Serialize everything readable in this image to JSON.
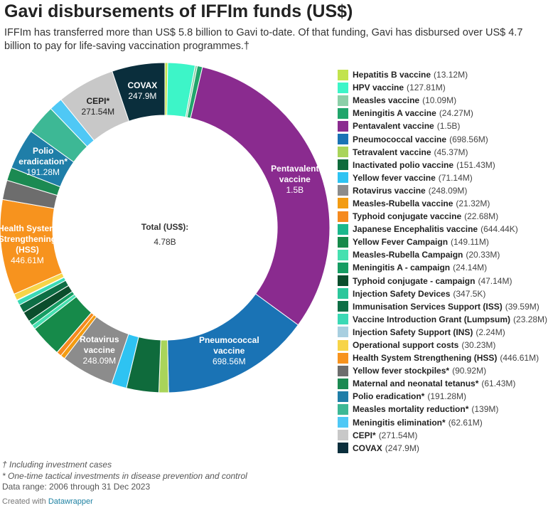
{
  "header": {
    "title": "Gavi disbursements of IFFIm funds (US$)",
    "subtitle": "IFFIm has transferred more than US$ 5.8 billion to Gavi to-date. Of that funding, Gavi has disbursed over US$ 4.7 billion to pay for life-saving vaccination programmes.†"
  },
  "chart_data": {
    "type": "pie",
    "donut": true,
    "legend_position": "right",
    "center_label": "Total (US$):",
    "center_value": "4.78B",
    "slices": [
      {
        "name": "Hepatitis B vaccine",
        "value_label": "(13.12M)",
        "value": 13.12,
        "color": "#c2e34d",
        "slice_label": []
      },
      {
        "name": "HPV vaccine",
        "value_label": "(127.81M)",
        "value": 127.81,
        "color": "#3df5c8",
        "slice_label": []
      },
      {
        "name": "Measles vaccine",
        "value_label": "(10.09M)",
        "value": 10.09,
        "color": "#8ccfa8",
        "slice_label": []
      },
      {
        "name": "Meningitis A vaccine",
        "value_label": "(24.27M)",
        "value": 24.27,
        "color": "#20a56b",
        "slice_label": []
      },
      {
        "name": "Pentavalent vaccine",
        "value_label": "(1.5B)",
        "value": 1500,
        "color": "#8a2b8f",
        "slice_label": [
          "Pentavalent",
          "vaccine",
          "1.5B"
        ]
      },
      {
        "name": "Pneumococcal vaccine",
        "value_label": "(698.56M)",
        "value": 698.56,
        "color": "#1a73b5",
        "slice_label": [
          "Pneumococcal",
          "vaccine",
          "698.56M"
        ]
      },
      {
        "name": "Tetravalent vaccine",
        "value_label": "(45.37M)",
        "value": 45.37,
        "color": "#a9d45a",
        "slice_label": []
      },
      {
        "name": "Inactivated polio vaccine",
        "value_label": "(151.43M)",
        "value": 151.43,
        "color": "#0f6b3c",
        "slice_label": []
      },
      {
        "name": "Yellow fever vaccine",
        "value_label": "(71.14M)",
        "value": 71.14,
        "color": "#2ec3f2",
        "slice_label": []
      },
      {
        "name": "Rotavirus vaccine",
        "value_label": "(248.09M)",
        "value": 248.09,
        "color": "#8c8c8c",
        "slice_label": [
          "Rotavirus",
          "vaccine",
          "248.09M"
        ]
      },
      {
        "name": "Measles-Rubella vaccine",
        "value_label": "(21.32M)",
        "value": 21.32,
        "color": "#f39c12",
        "slice_label": []
      },
      {
        "name": "Typhoid conjugate vaccine",
        "value_label": "(22.68M)",
        "value": 22.68,
        "color": "#f58a1f",
        "slice_label": []
      },
      {
        "name": "Japanese Encephalitis vaccine",
        "value_label": "(644.44K)",
        "value": 0.64444,
        "color": "#1bb88c",
        "slice_label": []
      },
      {
        "name": "Yellow Fever Campaign",
        "value_label": "(149.11M)",
        "value": 149.11,
        "color": "#168a4a",
        "slice_label": []
      },
      {
        "name": "Measles-Rubella Campaign",
        "value_label": "(20.33M)",
        "value": 20.33,
        "color": "#46e0b0",
        "slice_label": []
      },
      {
        "name": "Meningitis A - campaign",
        "value_label": "(24.14M)",
        "value": 24.14,
        "color": "#159c62",
        "slice_label": []
      },
      {
        "name": "Typhoid conjugate - campaign",
        "value_label": "(47.14M)",
        "value": 47.14,
        "color": "#0b4d2c",
        "slice_label": []
      },
      {
        "name": "Injection Safety Devices",
        "value_label": "(347.5K)",
        "value": 0.3475,
        "color": "#2bc79b",
        "slice_label": []
      },
      {
        "name": "Immunisation Services Support (ISS)",
        "value_label": "(39.59M)",
        "value": 39.59,
        "color": "#0d6e45",
        "slice_label": []
      },
      {
        "name": "Vaccine Introduction Grant (Lumpsum)",
        "value_label": "(23.28M)",
        "value": 23.28,
        "color": "#3bd9b5",
        "slice_label": []
      },
      {
        "name": "Injection Safety Support (INS)",
        "value_label": "(2.24M)",
        "value": 2.24,
        "color": "#a8cfe0",
        "slice_label": []
      },
      {
        "name": "Operational support costs",
        "value_label": "(30.23M)",
        "value": 30.23,
        "color": "#f7d448",
        "slice_label": []
      },
      {
        "name": "Health System Strengthening (HSS)",
        "value_label": "(446.61M)",
        "value": 446.61,
        "color": "#f7931e",
        "slice_label": [
          "Health System",
          "Strengthening",
          "(HSS)",
          "446.61M"
        ]
      },
      {
        "name": "Yellow fever stockpiles*",
        "value_label": "(90.92M)",
        "value": 90.92,
        "color": "#6d6d6d",
        "slice_label": []
      },
      {
        "name": "Maternal and neonatal tetanus*",
        "value_label": "(61.43M)",
        "value": 61.43,
        "color": "#1b8a52",
        "slice_label": []
      },
      {
        "name": "Polio eradication*",
        "value_label": "(191.28M)",
        "value": 191.28,
        "color": "#1f7ea8",
        "slice_label": [
          "Polio",
          "eradication*",
          "191.28M"
        ]
      },
      {
        "name": "Measles mortality reduction*",
        "value_label": "(139M)",
        "value": 139,
        "color": "#3db895",
        "slice_label": []
      },
      {
        "name": "Meningitis elimination*",
        "value_label": "(62.61M)",
        "value": 62.61,
        "color": "#4fc8f5",
        "slice_label": []
      },
      {
        "name": "CEPI*",
        "value_label": "(271.54M)",
        "value": 271.54,
        "color": "#c8c8c8",
        "slice_label": [
          "CEPI*",
          "271.54M"
        ]
      },
      {
        "name": "COVAX",
        "value_label": "(247.9M)",
        "value": 247.9,
        "color": "#0a2e3c",
        "slice_label": [
          "COVAX",
          "247.9M"
        ]
      }
    ]
  },
  "notes": {
    "dagger_note": "† Including investment cases",
    "star_note": "* One-time tactical investments in disease prevention and control",
    "data_range": "Data range: 2006 through 31 Dec 2023"
  },
  "credit": {
    "prefix": "Created with",
    "brand": "Datawrapper"
  }
}
